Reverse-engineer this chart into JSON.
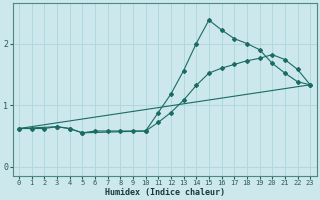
{
  "xlabel": "Humidex (Indice chaleur)",
  "bg_color": "#cce8ec",
  "grid_color": "#b0d8de",
  "line_color": "#1a6b64",
  "xlim": [
    -0.5,
    23.5
  ],
  "ylim": [
    -0.15,
    2.65
  ],
  "yticks": [
    0,
    1,
    2
  ],
  "xticks": [
    0,
    1,
    2,
    3,
    4,
    5,
    6,
    7,
    8,
    9,
    10,
    11,
    12,
    13,
    14,
    15,
    16,
    17,
    18,
    19,
    20,
    21,
    22,
    23
  ],
  "line1_x": [
    0,
    1,
    2,
    3,
    4,
    5,
    6,
    7,
    8,
    9,
    10,
    11,
    12,
    13,
    14,
    15,
    16,
    17,
    18,
    19,
    20,
    21,
    22,
    23
  ],
  "line1_y": [
    0.62,
    0.62,
    0.62,
    0.65,
    0.62,
    0.55,
    0.58,
    0.58,
    0.58,
    0.58,
    0.58,
    0.72,
    0.88,
    1.08,
    1.32,
    1.52,
    1.6,
    1.66,
    1.72,
    1.76,
    1.82,
    1.74,
    1.58,
    1.33
  ],
  "line2_x": [
    0,
    3,
    4,
    5,
    10,
    11,
    12,
    13,
    14,
    15,
    16,
    17,
    18,
    19,
    20,
    21,
    22,
    23
  ],
  "line2_y": [
    0.62,
    0.65,
    0.62,
    0.55,
    0.58,
    0.88,
    1.18,
    1.56,
    2.0,
    2.38,
    2.22,
    2.08,
    2.0,
    1.9,
    1.68,
    1.52,
    1.38,
    1.33
  ],
  "line3_x": [
    0,
    23
  ],
  "line3_y": [
    0.62,
    1.33
  ]
}
